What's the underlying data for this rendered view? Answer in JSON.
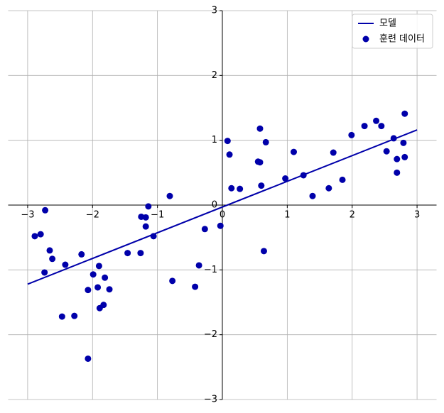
{
  "chart_data": {
    "type": "scatter",
    "xlim": [
      -3.3,
      3.3
    ],
    "ylim": [
      -3,
      3
    ],
    "xticks": [
      {
        "value": -3,
        "label": "−3"
      },
      {
        "value": -2,
        "label": "−2"
      },
      {
        "value": -1,
        "label": "−1"
      },
      0,
      1,
      2,
      3
    ],
    "yticks": [
      {
        "value": -3,
        "label": "−3"
      },
      {
        "value": -2,
        "label": "−2"
      },
      {
        "value": -1,
        "label": "−1"
      },
      0,
      1,
      2,
      3
    ],
    "grid": true,
    "legend": "upper right",
    "series": [
      {
        "name": "모델",
        "type": "line",
        "color": "#0000aa",
        "x": [
          -3,
          3
        ],
        "values": [
          -1.22,
          1.16
        ]
      },
      {
        "name": "훈련 데이터",
        "type": "scatter",
        "color": "#0000aa",
        "x": [
          -2.89,
          -2.8,
          -2.73,
          -2.66,
          -2.62,
          -2.74,
          -2.42,
          -2.47,
          -2.28,
          -2.17,
          -1.99,
          -1.9,
          -1.81,
          -2.07,
          -1.92,
          -1.74,
          -1.83,
          -1.89,
          -2.07,
          -1.46,
          -1.26,
          -1.25,
          -1.18,
          -1.18,
          -1.14,
          -1.06,
          -0.81,
          -0.77,
          -0.42,
          -0.36,
          -0.27,
          -0.03,
          0.08,
          0.11,
          0.14,
          0.27,
          0.58,
          0.67,
          0.55,
          0.58,
          0.6,
          0.64,
          0.97,
          1.1,
          1.25,
          1.39,
          1.64,
          1.71,
          1.85,
          1.99,
          2.19,
          2.37,
          2.45,
          2.53,
          2.64,
          2.69,
          2.69,
          2.79,
          2.81,
          2.81
        ],
        "values": [
          -0.48,
          -0.45,
          -0.08,
          -0.7,
          -0.83,
          -1.04,
          -0.92,
          -1.72,
          -1.71,
          -0.76,
          -1.07,
          -0.94,
          -1.12,
          -1.31,
          -1.27,
          -1.3,
          -1.54,
          -1.59,
          -2.37,
          -0.74,
          -0.74,
          -0.18,
          -0.19,
          -0.33,
          -0.02,
          -0.48,
          0.14,
          -1.17,
          -1.26,
          -0.93,
          -0.37,
          -0.32,
          0.99,
          0.78,
          0.26,
          0.25,
          1.18,
          0.97,
          0.67,
          0.66,
          0.3,
          -0.71,
          0.41,
          0.82,
          0.46,
          0.14,
          0.26,
          0.81,
          0.39,
          1.08,
          1.22,
          1.3,
          1.22,
          0.83,
          1.03,
          0.71,
          0.5,
          0.96,
          0.74,
          1.41
        ]
      }
    ]
  }
}
